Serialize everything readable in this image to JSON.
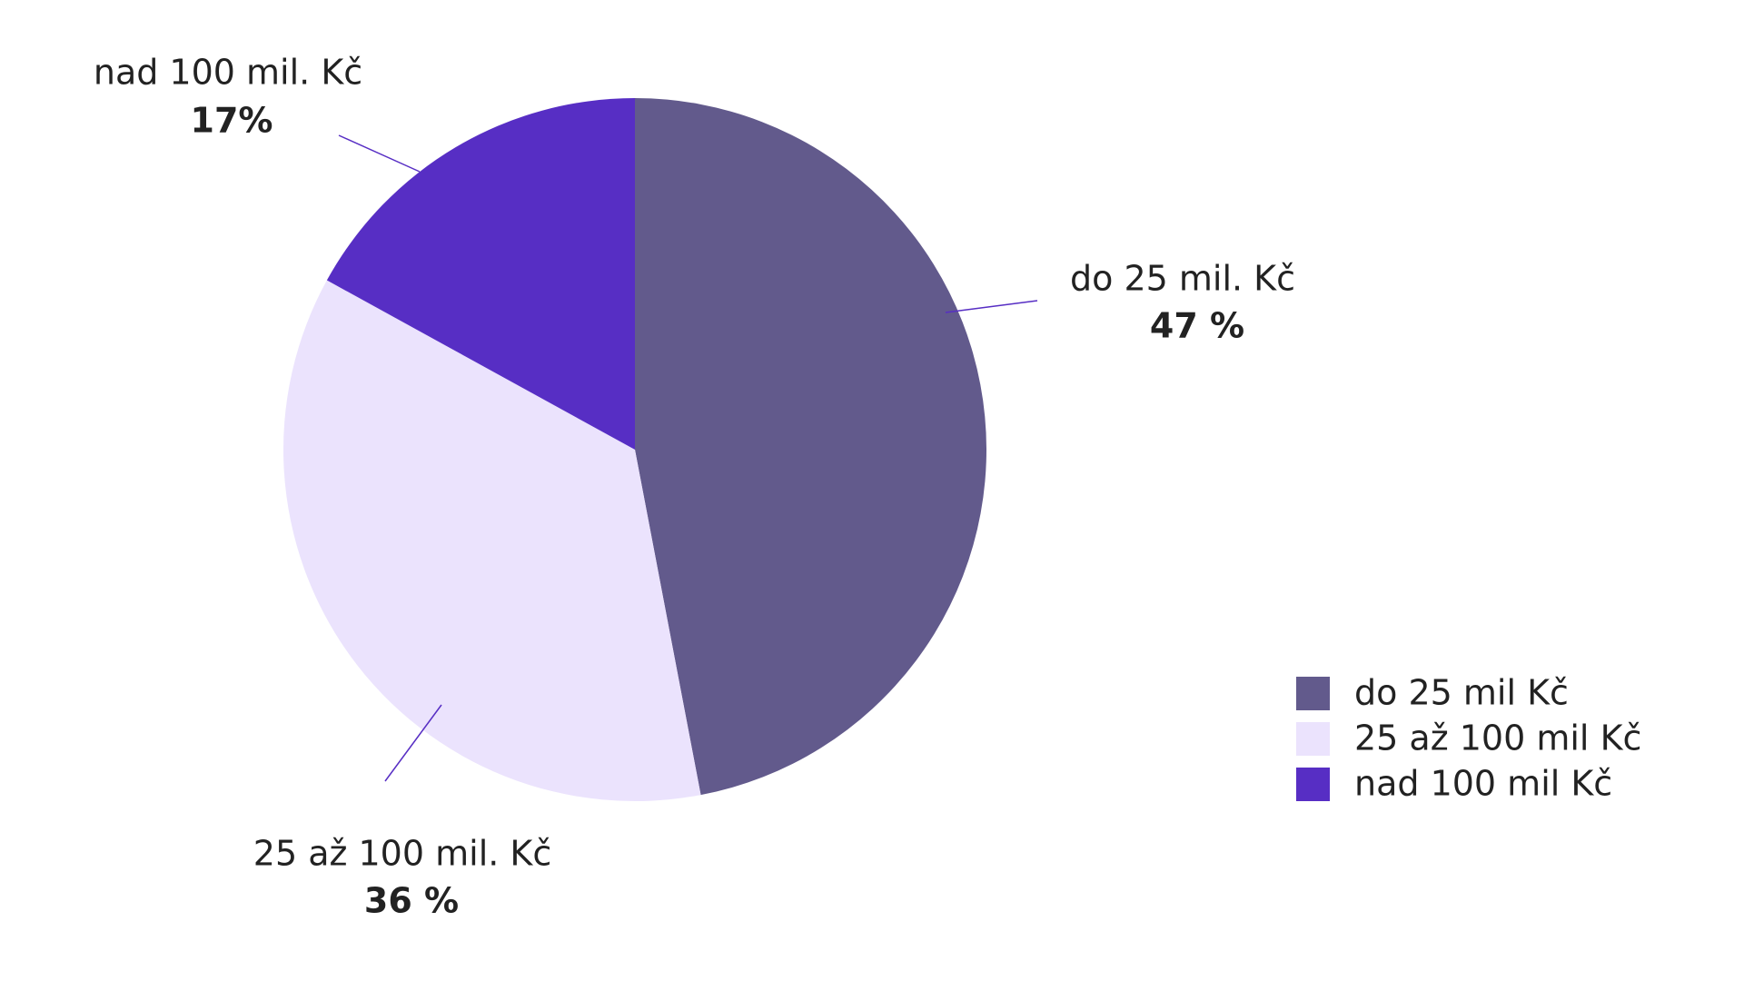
{
  "chart_data": {
    "type": "pie",
    "categories": [
      "do 25 mil. Kč",
      "25 až 100 mil. Kč",
      "nad 100 mil. Kč"
    ],
    "values": [
      47,
      36,
      17
    ],
    "value_labels": [
      "47 %",
      "36 %",
      "17%"
    ],
    "colors": [
      "#625a8c",
      "#ebe3fd",
      "#572ec4"
    ],
    "legend_labels": [
      "do 25 mil Kč",
      "25 až 100 mil Kč",
      "nad 100 mil Kč"
    ],
    "legend": "bottom-right"
  }
}
